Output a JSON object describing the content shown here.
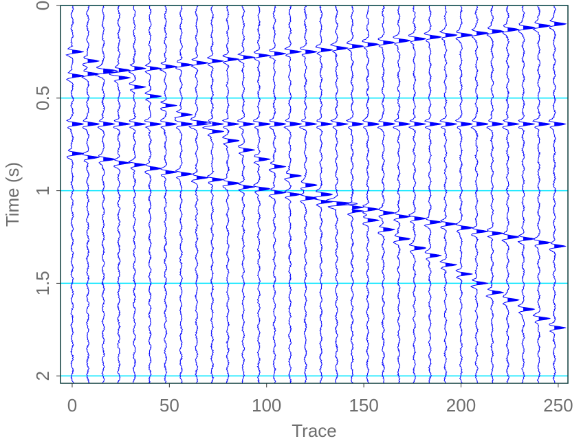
{
  "chart_data": {
    "type": "wiggle",
    "x_label": "Trace",
    "y_label": "Time (s)",
    "x": [
      0,
      8,
      16,
      24,
      32,
      40,
      48,
      56,
      64,
      72,
      80,
      88,
      96,
      104,
      112,
      120,
      128,
      136,
      144,
      152,
      160,
      168,
      176,
      184,
      192,
      200,
      208,
      216,
      224,
      232,
      240,
      248
    ],
    "series": [
      {
        "values": [
          0.38,
          0.37,
          0.36,
          0.35,
          0.34,
          0.34,
          0.33,
          0.32,
          0.31,
          0.3,
          0.29,
          0.28,
          0.27,
          0.26,
          0.25,
          0.25,
          0.24,
          0.23,
          0.22,
          0.21,
          0.2,
          0.19,
          0.18,
          0.17,
          0.16,
          0.16,
          0.15,
          0.14,
          0.13,
          0.12,
          0.11,
          0.1
        ]
      },
      {
        "values": [
          0.64,
          0.64,
          0.64,
          0.64,
          0.64,
          0.64,
          0.64,
          0.64,
          0.64,
          0.64,
          0.64,
          0.64,
          0.64,
          0.64,
          0.64,
          0.64,
          0.64,
          0.64,
          0.64,
          0.64,
          0.64,
          0.64,
          0.64,
          0.64,
          0.64,
          0.64,
          0.64,
          0.64,
          0.64,
          0.64,
          0.64,
          0.64
        ]
      },
      {
        "values": [
          0.8,
          0.82,
          0.83,
          0.85,
          0.86,
          0.88,
          0.9,
          0.91,
          0.93,
          0.94,
          0.96,
          0.98,
          0.99,
          1.01,
          1.02,
          1.04,
          1.06,
          1.07,
          1.09,
          1.1,
          1.12,
          1.14,
          1.15,
          1.17,
          1.18,
          1.2,
          1.22,
          1.23,
          1.25,
          1.26,
          1.28,
          1.3
        ]
      },
      {
        "values": [
          0.25,
          0.3,
          0.35,
          0.39,
          0.44,
          0.49,
          0.54,
          0.59,
          0.63,
          0.68,
          0.73,
          0.78,
          0.83,
          0.87,
          0.92,
          0.97,
          1.02,
          1.07,
          1.11,
          1.16,
          1.21,
          1.26,
          1.31,
          1.35,
          1.4,
          1.45,
          1.5,
          1.55,
          1.59,
          1.64,
          1.69,
          1.74
        ]
      }
    ],
    "color": "#0000ff",
    "grid_color": "#00e5ff",
    "grid": true,
    "xlim": [
      -6,
      255
    ],
    "xticks": [
      0,
      50,
      100,
      150,
      200,
      250
    ],
    "ylim": [
      2.04,
      0
    ],
    "yticks": [
      0,
      0.5,
      1,
      1.5,
      2
    ]
  }
}
